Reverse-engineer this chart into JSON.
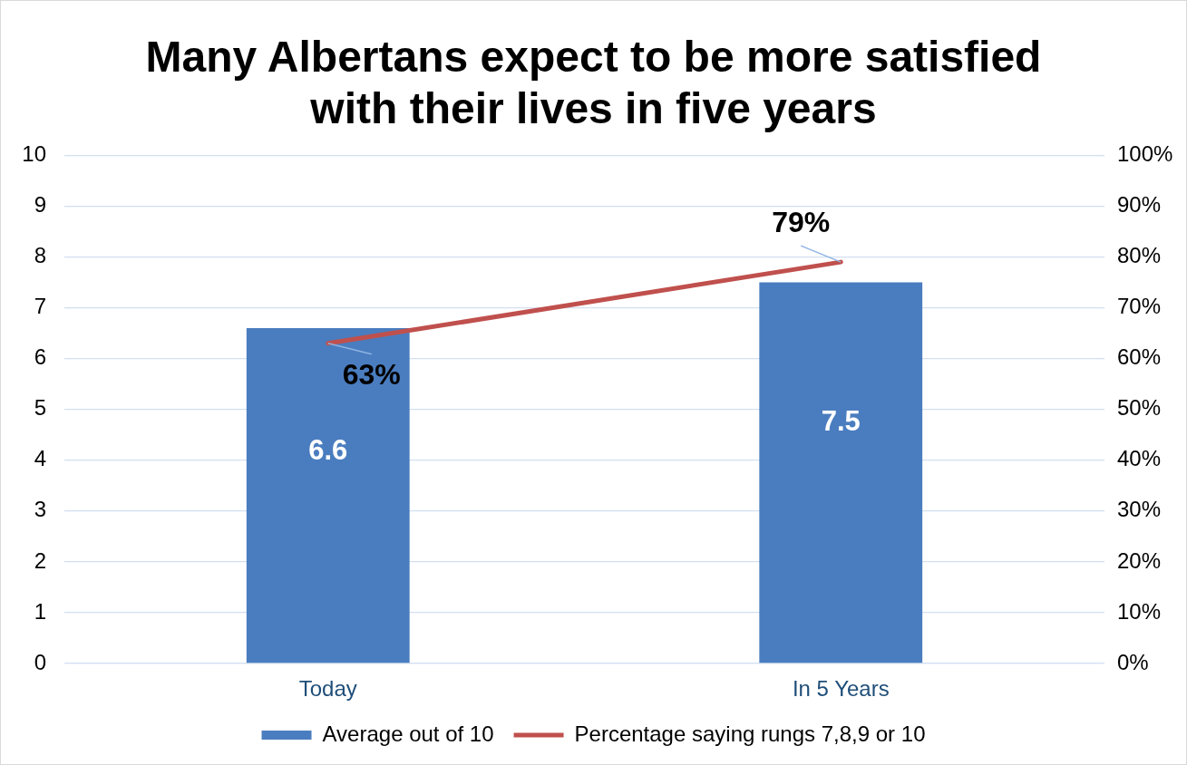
{
  "chart_data": {
    "type": "bar",
    "title": "Many Albertans expect to be more satisfied with their lives in five years",
    "categories": [
      "Today",
      "In 5 Years"
    ],
    "series": [
      {
        "name": "Average out of 10",
        "color": "#4a7dbf",
        "values": [
          6.6,
          7.5
        ],
        "value_labels": [
          "6.6",
          "7.5"
        ]
      },
      {
        "name": "Percentage saying rungs 7,8,9 or 10",
        "type": "line",
        "axis": "y2",
        "color": "#c0504d",
        "values": [
          63,
          79
        ],
        "value_labels": [
          "63%",
          "79%"
        ]
      }
    ],
    "ylim": [
      0,
      10
    ],
    "yticks": [
      0,
      1,
      2,
      3,
      4,
      5,
      6,
      7,
      8,
      9,
      10
    ],
    "y2lim": [
      0,
      100
    ],
    "y2ticks": [
      {
        "value": 0,
        "label": "0%"
      },
      {
        "value": 10,
        "label": "10%"
      },
      {
        "value": 20,
        "label": "20%"
      },
      {
        "value": 30,
        "label": "30%"
      },
      {
        "value": 40,
        "label": "40%"
      },
      {
        "value": 50,
        "label": "50%"
      },
      {
        "value": 60,
        "label": "60%"
      },
      {
        "value": 70,
        "label": "70%"
      },
      {
        "value": 80,
        "label": "80%"
      },
      {
        "value": 90,
        "label": "90%"
      },
      {
        "value": 100,
        "label": "100%"
      }
    ],
    "grid": "y",
    "legend": "bottom",
    "marker": "none"
  }
}
